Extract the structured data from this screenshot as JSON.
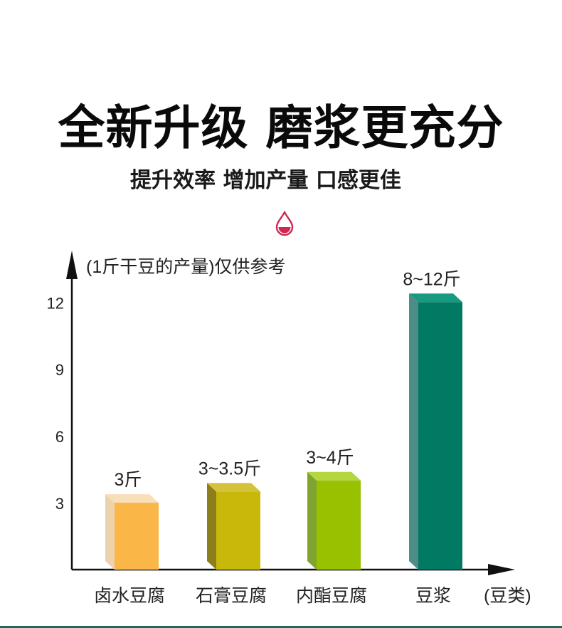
{
  "header": {
    "title": "全新升级 磨浆更充分",
    "subtitle": "提升效率 增加产量 口感更佳"
  },
  "icons": {
    "drop": "blood-drop-icon"
  },
  "colors": {
    "accent": "#d0284f",
    "bottom_bar": "#1f6b57"
  },
  "chart_data": {
    "type": "bar",
    "title": "(1斤干豆的产量)仅供参考",
    "xlabel": "(豆类)",
    "ylabel": "",
    "ylim": [
      0,
      13
    ],
    "yticks": [
      3,
      6,
      9,
      12
    ],
    "grid": false,
    "categories": [
      "卤水豆腐",
      "石膏豆腐",
      "内酯豆腐",
      "豆浆"
    ],
    "values": [
      3,
      3.5,
      4,
      12
    ],
    "value_labels": [
      "3斤",
      "3~3.5斤",
      "3~4斤",
      "8~12斤"
    ],
    "colors": [
      {
        "front": "#fbb648",
        "side": "#ecd3ae",
        "top": "#f8dfb7"
      },
      {
        "front": "#c7b809",
        "side": "#8c7e1a",
        "top": "#d4c33a"
      },
      {
        "front": "#98c200",
        "side": "#80a42f",
        "top": "#b4d640"
      },
      {
        "front": "#007a62",
        "side": "#4e8d85",
        "top": "#179a80"
      }
    ]
  }
}
